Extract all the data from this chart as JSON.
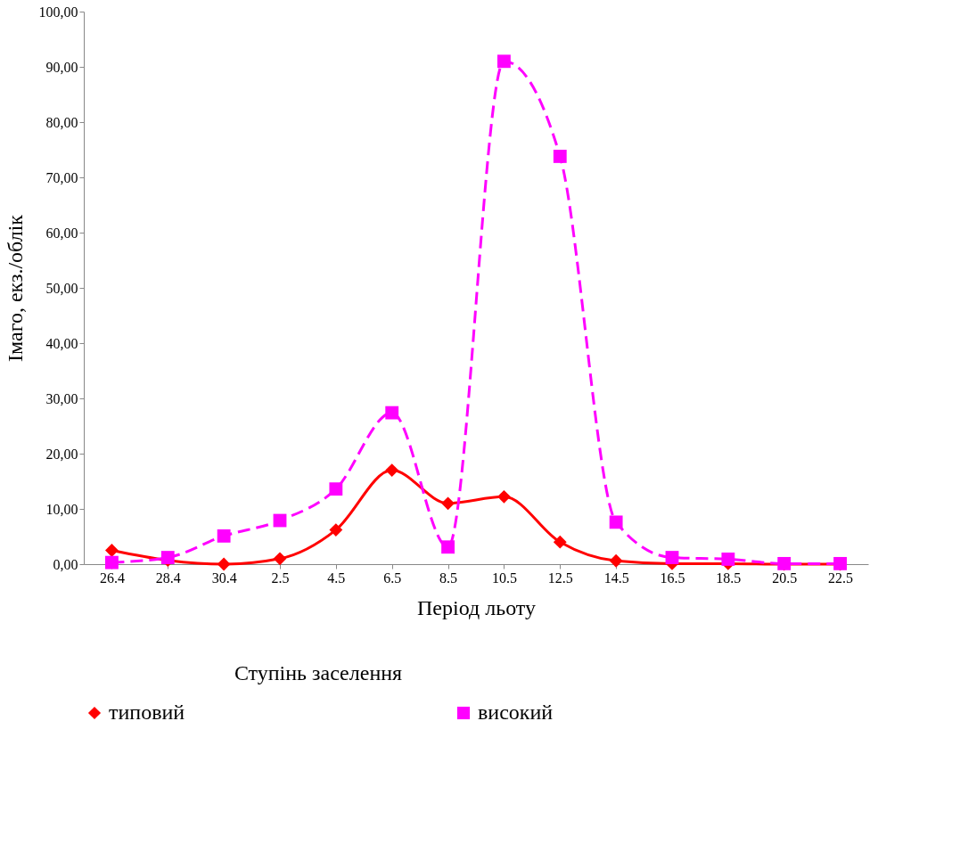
{
  "chart_data": {
    "type": "line",
    "xlabel": "Період льоту",
    "ylabel": "Імаго, екз./облік",
    "legend_title": "Ступінь заселення",
    "categories": [
      "26.4",
      "28.4",
      "30.4",
      "2.5",
      "4.5",
      "6.5",
      "8.5",
      "10.5",
      "12.5",
      "14.5",
      "16.5",
      "18.5",
      "20.5",
      "22.5"
    ],
    "series": [
      {
        "name": "типовий",
        "color": "#ff0000",
        "marker": "diamond",
        "line_style": "solid",
        "values": [
          2.5,
          0.7,
          0.0,
          1.0,
          6.2,
          17.0,
          11.0,
          12.2,
          4.0,
          0.6,
          0.1,
          0.1,
          0.0,
          0.0
        ]
      },
      {
        "name": "високий",
        "color": "#ff00ff",
        "marker": "square",
        "line_style": "dashed",
        "values": [
          0.3,
          1.2,
          5.1,
          7.9,
          13.6,
          27.4,
          3.1,
          91.0,
          73.8,
          7.6,
          1.2,
          0.9,
          0.1,
          0.1
        ]
      }
    ],
    "ylim": [
      0,
      100
    ],
    "yticks": [
      {
        "value": 0,
        "label": "0,00"
      },
      {
        "value": 10,
        "label": "10,00"
      },
      {
        "value": 20,
        "label": "20,00"
      },
      {
        "value": 30,
        "label": "30,00"
      },
      {
        "value": 40,
        "label": "40,00"
      },
      {
        "value": 50,
        "label": "50,00"
      },
      {
        "value": 60,
        "label": "60,00"
      },
      {
        "value": 70,
        "label": "70,00"
      },
      {
        "value": 80,
        "label": "80,00"
      },
      {
        "value": 90,
        "label": "90,00"
      },
      {
        "value": 100,
        "label": "100,00"
      }
    ],
    "grid": false,
    "legend": "bottom"
  }
}
